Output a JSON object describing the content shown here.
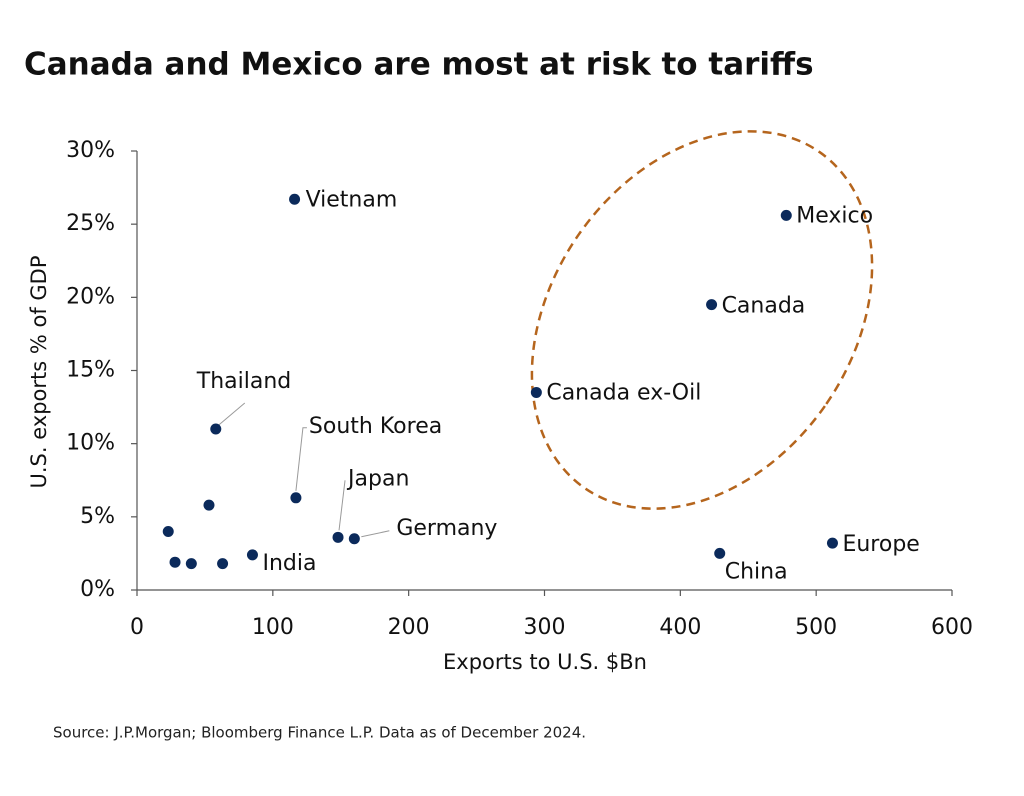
{
  "chart_data": {
    "type": "scatter",
    "title": "Canada and Mexico are most at risk to tariffs",
    "x_label": "Exports to U.S. $Bn",
    "y_label": "U.S. exports  % of GDP",
    "source": "Source: J.P.Morgan; Bloomberg Finance L.P. Data as of December 2024.",
    "color": "#0b2a5b",
    "x": [
      116,
      478,
      423,
      294,
      58,
      117,
      148,
      160,
      85,
      429,
      512,
      23,
      53,
      28,
      40,
      63
    ],
    "values": [
      26.7,
      25.6,
      19.5,
      13.5,
      11.0,
      6.3,
      3.6,
      3.5,
      2.4,
      2.5,
      3.2,
      4.0,
      5.8,
      1.9,
      1.8,
      1.8
    ],
    "point_labels": [
      "Vietnam",
      "Mexico",
      "Canada",
      "Canada ex-Oil",
      "Thailand",
      "South Korea",
      "Japan",
      "Germany",
      "India",
      "China",
      "Europe",
      null,
      null,
      null,
      null,
      null
    ],
    "xlim": [
      0,
      600
    ],
    "xticks": [
      0,
      100,
      200,
      300,
      400,
      500,
      600
    ],
    "ylim": [
      0,
      30
    ],
    "yticks": [
      {
        "value": 0,
        "label": "0%"
      },
      {
        "value": 5,
        "label": "5%"
      },
      {
        "value": 10,
        "label": "10%"
      },
      {
        "value": 15,
        "label": "15%"
      },
      {
        "value": 20,
        "label": "20%"
      },
      {
        "value": 25,
        "label": "25%"
      },
      {
        "value": 30,
        "label": "30%"
      }
    ]
  }
}
